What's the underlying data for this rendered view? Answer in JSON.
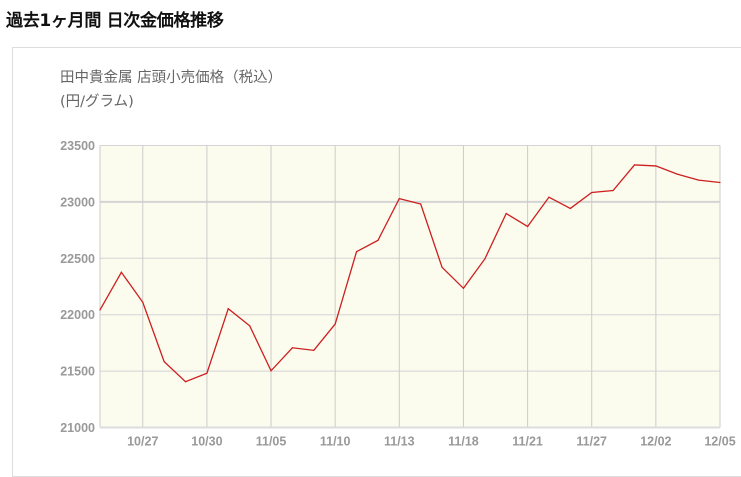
{
  "header": {
    "title": "過去1ヶ月間 日次金価格推移"
  },
  "chart_data": {
    "type": "line",
    "title": "田中貴金属 店頭小売価格（税込）",
    "ylabel": "(円/グラム)",
    "xlabel": "",
    "ylim": [
      21000,
      23500
    ],
    "yticks": [
      21000,
      21500,
      22000,
      22500,
      23000,
      23500
    ],
    "x_tick_labels": [
      {
        "index": 2,
        "label": "10/27"
      },
      {
        "index": 5,
        "label": "10/30"
      },
      {
        "index": 8,
        "label": "11/05"
      },
      {
        "index": 11,
        "label": "11/10"
      },
      {
        "index": 14,
        "label": "11/13"
      },
      {
        "index": 17,
        "label": "11/18"
      },
      {
        "index": 20,
        "label": "11/21"
      },
      {
        "index": 23,
        "label": "11/27"
      },
      {
        "index": 26,
        "label": "12/02"
      },
      {
        "index": 29,
        "label": "12/05"
      }
    ],
    "values": [
      22042,
      22376,
      22110,
      21584,
      21406,
      21481,
      22053,
      21902,
      21503,
      21707,
      21684,
      21917,
      22559,
      22659,
      23029,
      22981,
      22420,
      22234,
      22494,
      22897,
      22782,
      23042,
      22942,
      23083,
      23101,
      23328,
      23319,
      23246,
      23193,
      23172
    ],
    "grid": true,
    "colors": {
      "line": "#cc1f1f",
      "plot_bg": "#fbfbee",
      "grid": "#cccccc"
    }
  }
}
